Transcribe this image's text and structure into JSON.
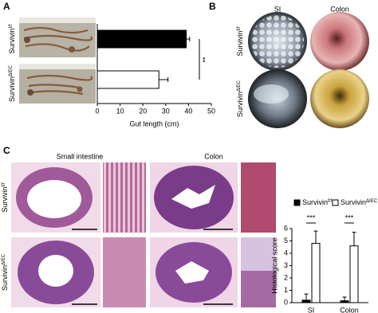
{
  "panels": {
    "labels": [
      "A",
      "B",
      "C"
    ],
    "B": {
      "columns": [
        "SI",
        "Colon"
      ],
      "rows": [
        {
          "name": "Survivin",
          "sup": "f/f"
        },
        {
          "name": "Survivin",
          "sup": "ΔIEC"
        }
      ]
    },
    "C": {
      "columns": [
        "Small intestine",
        "Colon"
      ],
      "rows": [
        {
          "name": "Survivin",
          "sup": "f/f"
        },
        {
          "name": "Survivin",
          "sup": "ΔIEC"
        }
      ]
    }
  },
  "chart_data": [
    {
      "type": "bar",
      "orientation": "horizontal",
      "categories": [
        {
          "name": "Survivin",
          "sup": "f/f"
        },
        {
          "name": "Survivin",
          "sup": "ΔIEC"
        }
      ],
      "values": [
        39,
        27
      ],
      "errors": [
        1.5,
        4
      ],
      "colors": [
        "#000000",
        "#ffffff"
      ],
      "xlim": [
        0,
        50
      ],
      "xticks": [
        0,
        10,
        20,
        30,
        40,
        50
      ],
      "xlabel": "Gut length (cm)",
      "annotation": "**"
    },
    {
      "type": "bar",
      "orientation": "vertical",
      "categories": [
        "SI",
        "Colon"
      ],
      "series": [
        {
          "name": "Survivin",
          "sup": "f/f",
          "color": "#000000",
          "values": [
            0.2,
            0.15
          ],
          "errors": [
            0.5,
            0.3
          ]
        },
        {
          "name": "Survivin",
          "sup": "ΔIEC",
          "color": "#ffffff",
          "values": [
            4.8,
            4.6
          ],
          "errors": [
            1.0,
            1.1
          ]
        }
      ],
      "ylim": [
        0,
        6
      ],
      "yticks": [
        0,
        1,
        2,
        3,
        4,
        5,
        6
      ],
      "ylabel": "Histological score",
      "annotations": [
        "***",
        "***"
      ],
      "legend": "top"
    }
  ]
}
